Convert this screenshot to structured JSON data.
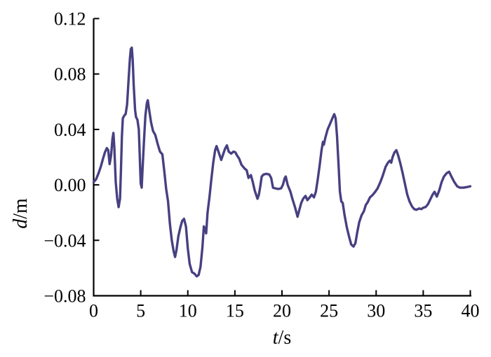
{
  "figure": {
    "background": "#ffffff",
    "axis_color": "#000000",
    "text_color": "#000000"
  },
  "chart_data": {
    "type": "line",
    "title": "",
    "xlabel": "t/s",
    "ylabel": "d/m",
    "xlabel_var": "t",
    "xlabel_unit": "/s",
    "ylabel_var": "d",
    "ylabel_unit": "/m",
    "xlim": [
      0,
      40
    ],
    "ylim": [
      -0.08,
      0.12
    ],
    "xticks": [
      0,
      5,
      10,
      15,
      20,
      25,
      30,
      35,
      40
    ],
    "yticks": [
      -0.08,
      -0.04,
      0,
      0.04,
      0.08,
      0.12
    ],
    "xtick_labels": [
      "0",
      "5",
      "10",
      "15",
      "20",
      "25",
      "30",
      "35",
      "40"
    ],
    "ytick_labels": [
      "−0.08",
      "−0.04",
      "0.00",
      "0.04",
      "0.08",
      "0.12"
    ],
    "grid": false,
    "legend": null,
    "line_color": "#474081",
    "line_width": 3.4,
    "series": [
      {
        "name": "d",
        "points": [
          [
            0,
            0.002
          ],
          [
            0.25,
            0.004
          ],
          [
            0.5,
            0.008
          ],
          [
            0.75,
            0.013
          ],
          [
            1.0,
            0.019
          ],
          [
            1.2,
            0.0235
          ],
          [
            1.4,
            0.0265
          ],
          [
            1.55,
            0.025
          ],
          [
            1.7,
            0.015
          ],
          [
            1.85,
            0.021
          ],
          [
            2.0,
            0.033
          ],
          [
            2.1,
            0.0375
          ],
          [
            2.2,
            0.027
          ],
          [
            2.35,
            0.002
          ],
          [
            2.5,
            -0.01
          ],
          [
            2.65,
            -0.016
          ],
          [
            2.8,
            -0.01
          ],
          [
            2.9,
            0.01
          ],
          [
            3.0,
            0.035
          ],
          [
            3.1,
            0.048
          ],
          [
            3.25,
            0.05
          ],
          [
            3.4,
            0.051
          ],
          [
            3.55,
            0.058
          ],
          [
            3.7,
            0.075
          ],
          [
            3.85,
            0.091
          ],
          [
            3.95,
            0.098
          ],
          [
            4.05,
            0.099
          ],
          [
            4.15,
            0.09
          ],
          [
            4.25,
            0.072
          ],
          [
            4.4,
            0.054
          ],
          [
            4.5,
            0.049
          ],
          [
            4.65,
            0.047
          ],
          [
            4.8,
            0.04
          ],
          [
            4.9,
            0.02
          ],
          [
            5.0,
            0.001
          ],
          [
            5.1,
            -0.002
          ],
          [
            5.2,
            0.012
          ],
          [
            5.35,
            0.032
          ],
          [
            5.5,
            0.05
          ],
          [
            5.65,
            0.059
          ],
          [
            5.75,
            0.061
          ],
          [
            5.9,
            0.054
          ],
          [
            6.1,
            0.045
          ],
          [
            6.3,
            0.039
          ],
          [
            6.55,
            0.036
          ],
          [
            6.8,
            0.0295
          ],
          [
            7.05,
            0.024
          ],
          [
            7.3,
            0.022
          ],
          [
            7.5,
            0.01
          ],
          [
            7.7,
            -0.003
          ],
          [
            7.9,
            -0.012
          ],
          [
            8.1,
            -0.028
          ],
          [
            8.3,
            -0.04
          ],
          [
            8.5,
            -0.048
          ],
          [
            8.65,
            -0.052
          ],
          [
            8.8,
            -0.047
          ],
          [
            9.0,
            -0.037
          ],
          [
            9.2,
            -0.031
          ],
          [
            9.4,
            -0.026
          ],
          [
            9.6,
            -0.0245
          ],
          [
            9.8,
            -0.03
          ],
          [
            10.0,
            -0.046
          ],
          [
            10.2,
            -0.057
          ],
          [
            10.45,
            -0.063
          ],
          [
            10.7,
            -0.064
          ],
          [
            10.95,
            -0.066
          ],
          [
            11.15,
            -0.065
          ],
          [
            11.35,
            -0.059
          ],
          [
            11.55,
            -0.045
          ],
          [
            11.7,
            -0.03
          ],
          [
            11.85,
            -0.032
          ],
          [
            11.95,
            -0.035
          ],
          [
            12.1,
            -0.02
          ],
          [
            12.3,
            -0.009
          ],
          [
            12.5,
            0.004
          ],
          [
            12.7,
            0.016
          ],
          [
            12.9,
            0.025
          ],
          [
            13.05,
            0.028
          ],
          [
            13.3,
            0.023
          ],
          [
            13.55,
            0.018
          ],
          [
            13.75,
            0.022
          ],
          [
            13.95,
            0.026
          ],
          [
            14.15,
            0.0285
          ],
          [
            14.35,
            0.024
          ],
          [
            14.6,
            0.0225
          ],
          [
            14.85,
            0.024
          ],
          [
            15.05,
            0.0235
          ],
          [
            15.25,
            0.021
          ],
          [
            15.45,
            0.019
          ],
          [
            15.7,
            0.0145
          ],
          [
            16.0,
            0.012
          ],
          [
            16.25,
            0.0105
          ],
          [
            16.45,
            0.005
          ],
          [
            16.7,
            0.007
          ],
          [
            16.9,
            0.002
          ],
          [
            17.1,
            -0.004
          ],
          [
            17.4,
            -0.01
          ],
          [
            17.55,
            -0.007
          ],
          [
            17.7,
            -0.001
          ],
          [
            17.85,
            0.006
          ],
          [
            18.05,
            0.0075
          ],
          [
            18.35,
            0.008
          ],
          [
            18.65,
            0.0075
          ],
          [
            18.85,
            0.005
          ],
          [
            19.05,
            -0.002
          ],
          [
            19.3,
            -0.0025
          ],
          [
            19.6,
            -0.003
          ],
          [
            19.9,
            -0.0025
          ],
          [
            20.1,
            0.0
          ],
          [
            20.3,
            0.005
          ],
          [
            20.4,
            0.006
          ],
          [
            20.6,
            0.0
          ],
          [
            20.9,
            -0.005
          ],
          [
            21.1,
            -0.01
          ],
          [
            21.4,
            -0.0165
          ],
          [
            21.65,
            -0.023
          ],
          [
            21.85,
            -0.018
          ],
          [
            22.05,
            -0.013
          ],
          [
            22.25,
            -0.01
          ],
          [
            22.5,
            -0.008
          ],
          [
            22.7,
            -0.011
          ],
          [
            22.95,
            -0.009
          ],
          [
            23.15,
            -0.007
          ],
          [
            23.4,
            -0.009
          ],
          [
            23.6,
            -0.005
          ],
          [
            23.8,
            0.004
          ],
          [
            24.0,
            0.014
          ],
          [
            24.2,
            0.025
          ],
          [
            24.35,
            0.031
          ],
          [
            24.45,
            0.029
          ],
          [
            24.6,
            0.034
          ],
          [
            24.85,
            0.04
          ],
          [
            25.1,
            0.044
          ],
          [
            25.35,
            0.048
          ],
          [
            25.55,
            0.051
          ],
          [
            25.7,
            0.048
          ],
          [
            25.85,
            0.035
          ],
          [
            26.0,
            0.015
          ],
          [
            26.15,
            -0.005
          ],
          [
            26.3,
            -0.012
          ],
          [
            26.45,
            -0.013
          ],
          [
            26.65,
            -0.022
          ],
          [
            26.9,
            -0.031
          ],
          [
            27.15,
            -0.038
          ],
          [
            27.35,
            -0.043
          ],
          [
            27.6,
            -0.0445
          ],
          [
            27.8,
            -0.042
          ],
          [
            28.0,
            -0.034
          ],
          [
            28.2,
            -0.027
          ],
          [
            28.45,
            -0.022
          ],
          [
            28.7,
            -0.019
          ],
          [
            28.9,
            -0.0145
          ],
          [
            29.1,
            -0.0125
          ],
          [
            29.35,
            -0.009
          ],
          [
            29.6,
            -0.0075
          ],
          [
            29.9,
            -0.005
          ],
          [
            30.15,
            -0.0025
          ],
          [
            30.45,
            0.002
          ],
          [
            30.7,
            0.0065
          ],
          [
            31.0,
            0.013
          ],
          [
            31.25,
            0.016
          ],
          [
            31.45,
            0.0175
          ],
          [
            31.6,
            0.016
          ],
          [
            31.75,
            0.02
          ],
          [
            31.95,
            0.0235
          ],
          [
            32.15,
            0.025
          ],
          [
            32.35,
            0.021
          ],
          [
            32.55,
            0.016
          ],
          [
            32.8,
            0.009
          ],
          [
            33.05,
            0.001
          ],
          [
            33.3,
            -0.007
          ],
          [
            33.55,
            -0.012
          ],
          [
            33.8,
            -0.0155
          ],
          [
            34.05,
            -0.0175
          ],
          [
            34.3,
            -0.018
          ],
          [
            34.55,
            -0.017
          ],
          [
            34.8,
            -0.0175
          ],
          [
            35.0,
            -0.0165
          ],
          [
            35.25,
            -0.016
          ],
          [
            35.5,
            -0.014
          ],
          [
            35.75,
            -0.0105
          ],
          [
            36.0,
            -0.007
          ],
          [
            36.2,
            -0.005
          ],
          [
            36.45,
            -0.0085
          ],
          [
            36.7,
            -0.004
          ],
          [
            36.95,
            0.002
          ],
          [
            37.2,
            0.006
          ],
          [
            37.5,
            0.0085
          ],
          [
            37.75,
            0.0095
          ],
          [
            38.0,
            0.006
          ],
          [
            38.3,
            0.002
          ],
          [
            38.6,
            -0.001
          ],
          [
            38.9,
            -0.002
          ],
          [
            39.3,
            -0.002
          ],
          [
            39.7,
            -0.0015
          ],
          [
            40.0,
            -0.001
          ]
        ]
      }
    ]
  }
}
